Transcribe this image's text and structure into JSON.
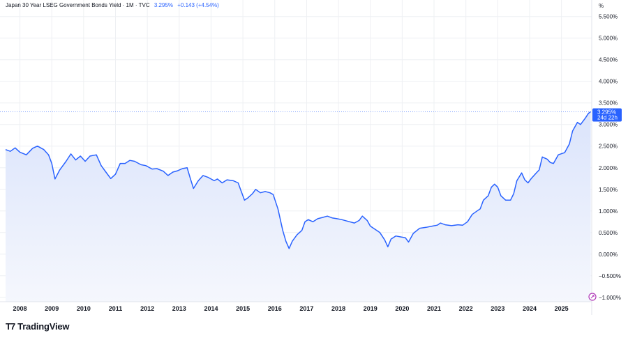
{
  "header": {
    "symbol_title": "Japan 30 Year LSEG Government Bonds Yield · 1M · TVC",
    "last_value": "3.295%",
    "change": "+0.143 (+4.54%)"
  },
  "branding": {
    "logo_text": "TradingView"
  },
  "axis": {
    "unit": "%"
  },
  "last_price_badge": {
    "value": "3.295%",
    "countdown": "24d 22h"
  },
  "colors": {
    "line": "#2962ff",
    "fill_top": "#dbe4fb",
    "fill_bottom": "#f5f7fd",
    "grid": "#eef0f3",
    "badge": "#2962ff"
  },
  "chart_data": {
    "type": "area",
    "title": "Japan 30 Year LSEG Government Bonds Yield",
    "ylim": [
      -1.1,
      5.85
    ],
    "xlim": [
      2007.55,
      2025.95
    ],
    "grid": true,
    "ytick_labels": [
      "5.500%",
      "5.000%",
      "4.500%",
      "4.000%",
      "3.500%",
      "3.000%",
      "2.500%",
      "2.000%",
      "1.500%",
      "1.000%",
      "0.500%",
      "0.000%",
      "−0.500%",
      "−1.000%"
    ],
    "yticks": [
      5.5,
      5.0,
      4.5,
      4.0,
      3.5,
      3.0,
      2.5,
      2.0,
      1.5,
      1.0,
      0.5,
      0.0,
      -0.5,
      -1.0
    ],
    "xtick_labels": [
      "2008",
      "2009",
      "2010",
      "2011",
      "2012",
      "2013",
      "2014",
      "2015",
      "2016",
      "2017",
      "2018",
      "2019",
      "2020",
      "2021",
      "2022",
      "2023",
      "2024",
      "2025"
    ],
    "xticks": [
      2008,
      2009,
      2010,
      2011,
      2012,
      2013,
      2014,
      2015,
      2016,
      2017,
      2018,
      2019,
      2020,
      2021,
      2022,
      2023,
      2024,
      2025
    ],
    "series": [
      {
        "points": [
          [
            2007.55,
            2.42
          ],
          [
            2007.7,
            2.38
          ],
          [
            2007.85,
            2.46
          ],
          [
            2008.0,
            2.36
          ],
          [
            2008.2,
            2.3
          ],
          [
            2008.4,
            2.45
          ],
          [
            2008.55,
            2.5
          ],
          [
            2008.75,
            2.42
          ],
          [
            2008.9,
            2.3
          ],
          [
            2009.0,
            2.1
          ],
          [
            2009.1,
            1.74
          ],
          [
            2009.25,
            1.95
          ],
          [
            2009.45,
            2.15
          ],
          [
            2009.6,
            2.32
          ],
          [
            2009.75,
            2.18
          ],
          [
            2009.9,
            2.27
          ],
          [
            2010.05,
            2.15
          ],
          [
            2010.2,
            2.27
          ],
          [
            2010.4,
            2.3
          ],
          [
            2010.55,
            2.05
          ],
          [
            2010.7,
            1.9
          ],
          [
            2010.85,
            1.75
          ],
          [
            2011.0,
            1.85
          ],
          [
            2011.15,
            2.1
          ],
          [
            2011.3,
            2.1
          ],
          [
            2011.45,
            2.17
          ],
          [
            2011.6,
            2.15
          ],
          [
            2011.8,
            2.07
          ],
          [
            2011.95,
            2.05
          ],
          [
            2012.15,
            1.97
          ],
          [
            2012.3,
            1.98
          ],
          [
            2012.5,
            1.92
          ],
          [
            2012.65,
            1.82
          ],
          [
            2012.8,
            1.9
          ],
          [
            2012.95,
            1.93
          ],
          [
            2013.1,
            1.98
          ],
          [
            2013.25,
            2.0
          ],
          [
            2013.35,
            1.75
          ],
          [
            2013.45,
            1.52
          ],
          [
            2013.6,
            1.7
          ],
          [
            2013.75,
            1.82
          ],
          [
            2013.9,
            1.78
          ],
          [
            2014.1,
            1.7
          ],
          [
            2014.2,
            1.74
          ],
          [
            2014.35,
            1.65
          ],
          [
            2014.5,
            1.72
          ],
          [
            2014.7,
            1.7
          ],
          [
            2014.85,
            1.65
          ],
          [
            2014.95,
            1.45
          ],
          [
            2015.05,
            1.25
          ],
          [
            2015.15,
            1.3
          ],
          [
            2015.3,
            1.4
          ],
          [
            2015.4,
            1.5
          ],
          [
            2015.55,
            1.42
          ],
          [
            2015.7,
            1.45
          ],
          [
            2015.85,
            1.42
          ],
          [
            2015.95,
            1.38
          ],
          [
            2016.1,
            1.05
          ],
          [
            2016.25,
            0.55
          ],
          [
            2016.35,
            0.3
          ],
          [
            2016.45,
            0.13
          ],
          [
            2016.55,
            0.3
          ],
          [
            2016.7,
            0.45
          ],
          [
            2016.85,
            0.55
          ],
          [
            2016.95,
            0.75
          ],
          [
            2017.05,
            0.8
          ],
          [
            2017.2,
            0.75
          ],
          [
            2017.35,
            0.82
          ],
          [
            2017.5,
            0.85
          ],
          [
            2017.65,
            0.88
          ],
          [
            2017.8,
            0.84
          ],
          [
            2017.95,
            0.82
          ],
          [
            2018.1,
            0.8
          ],
          [
            2018.3,
            0.76
          ],
          [
            2018.5,
            0.72
          ],
          [
            2018.65,
            0.78
          ],
          [
            2018.75,
            0.88
          ],
          [
            2018.9,
            0.78
          ],
          [
            2019.0,
            0.65
          ],
          [
            2019.1,
            0.6
          ],
          [
            2019.3,
            0.5
          ],
          [
            2019.45,
            0.33
          ],
          [
            2019.55,
            0.17
          ],
          [
            2019.65,
            0.35
          ],
          [
            2019.8,
            0.42
          ],
          [
            2019.95,
            0.4
          ],
          [
            2020.1,
            0.38
          ],
          [
            2020.2,
            0.28
          ],
          [
            2020.35,
            0.48
          ],
          [
            2020.55,
            0.6
          ],
          [
            2020.75,
            0.62
          ],
          [
            2020.95,
            0.65
          ],
          [
            2021.1,
            0.67
          ],
          [
            2021.2,
            0.72
          ],
          [
            2021.35,
            0.68
          ],
          [
            2021.55,
            0.66
          ],
          [
            2021.75,
            0.68
          ],
          [
            2021.9,
            0.67
          ],
          [
            2022.05,
            0.75
          ],
          [
            2022.2,
            0.92
          ],
          [
            2022.35,
            1.0
          ],
          [
            2022.45,
            1.05
          ],
          [
            2022.55,
            1.25
          ],
          [
            2022.7,
            1.35
          ],
          [
            2022.8,
            1.55
          ],
          [
            2022.9,
            1.62
          ],
          [
            2023.0,
            1.55
          ],
          [
            2023.1,
            1.35
          ],
          [
            2023.25,
            1.25
          ],
          [
            2023.4,
            1.25
          ],
          [
            2023.5,
            1.4
          ],
          [
            2023.6,
            1.7
          ],
          [
            2023.75,
            1.88
          ],
          [
            2023.85,
            1.72
          ],
          [
            2023.95,
            1.65
          ],
          [
            2024.05,
            1.75
          ],
          [
            2024.2,
            1.87
          ],
          [
            2024.3,
            1.95
          ],
          [
            2024.4,
            2.25
          ],
          [
            2024.55,
            2.2
          ],
          [
            2024.65,
            2.12
          ],
          [
            2024.75,
            2.1
          ],
          [
            2024.9,
            2.3
          ],
          [
            2025.1,
            2.35
          ],
          [
            2025.25,
            2.55
          ],
          [
            2025.35,
            2.85
          ],
          [
            2025.5,
            3.05
          ],
          [
            2025.6,
            3.0
          ],
          [
            2025.75,
            3.15
          ],
          [
            2025.85,
            3.26
          ],
          [
            2025.92,
            3.295
          ]
        ]
      }
    ]
  }
}
